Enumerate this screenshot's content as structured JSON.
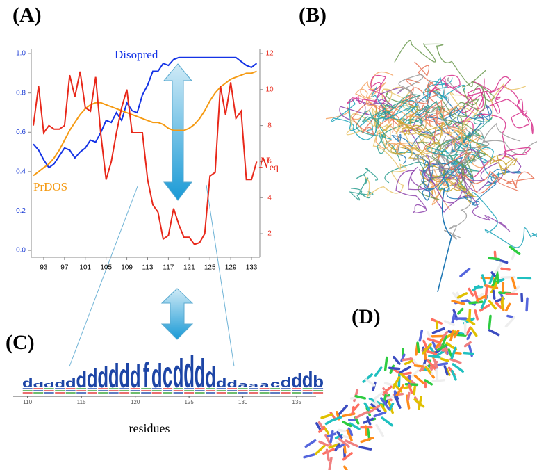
{
  "panels": {
    "a": "(A)",
    "b": "(B)",
    "c": "(C)",
    "d": "(D)"
  },
  "chart_data": [
    {
      "type": "line",
      "x": [
        91,
        92,
        93,
        94,
        95,
        96,
        97,
        98,
        99,
        100,
        101,
        102,
        103,
        104,
        105,
        106,
        107,
        108,
        109,
        110,
        111,
        112,
        113,
        114,
        115,
        116,
        117,
        118,
        119,
        120,
        121,
        122,
        123,
        124,
        125,
        126,
        127,
        128,
        129,
        130,
        131,
        132,
        133,
        134
      ],
      "xlim": [
        90.6,
        134.6
      ],
      "xticks": [
        93,
        97,
        101,
        105,
        109,
        113,
        117,
        121,
        125,
        129,
        133
      ],
      "ylim": [
        -0.035,
        1.025
      ],
      "yticks": [
        {
          "value": 0,
          "label": "0.0"
        },
        0.2,
        0.4,
        0.6,
        0.8,
        {
          "value": 1,
          "label": "1.0"
        }
      ],
      "y2lim": [
        0.69,
        12.27
      ],
      "y2ticks": [
        2,
        4,
        6,
        8,
        10,
        12
      ],
      "y2label": {
        "main": "N",
        "sub": "eq"
      },
      "y_color": "#1f3fd6",
      "y2_color": "#e8281a",
      "series": [
        {
          "name": "Disopred",
          "color": "#1433e6",
          "values": [
            0.54,
            0.51,
            0.46,
            0.42,
            0.44,
            0.48,
            0.52,
            0.51,
            0.47,
            0.5,
            0.52,
            0.56,
            0.55,
            0.6,
            0.66,
            0.65,
            0.7,
            0.66,
            0.75,
            0.71,
            0.7,
            0.79,
            0.84,
            0.91,
            0.91,
            0.95,
            0.94,
            0.97,
            0.98,
            0.98,
            0.98,
            0.98,
            0.98,
            0.98,
            0.98,
            0.98,
            0.98,
            0.98,
            0.98,
            0.98,
            0.96,
            0.94,
            0.93,
            0.95
          ]
        },
        {
          "name": "PrDOS",
          "color": "#f59a12",
          "values": [
            0.38,
            0.4,
            0.42,
            0.44,
            0.47,
            0.51,
            0.56,
            0.61,
            0.65,
            0.69,
            0.72,
            0.74,
            0.75,
            0.75,
            0.74,
            0.73,
            0.72,
            0.71,
            0.7,
            0.69,
            0.68,
            0.67,
            0.66,
            0.65,
            0.65,
            0.64,
            0.62,
            0.61,
            0.61,
            0.61,
            0.62,
            0.64,
            0.67,
            0.71,
            0.76,
            0.8,
            0.83,
            0.85,
            0.87,
            0.88,
            0.89,
            0.9,
            0.9,
            0.91
          ]
        },
        {
          "name": "Neq",
          "color": "#e8281a",
          "axis": "y2",
          "values": [
            8.0,
            10.2,
            7.6,
            8.0,
            7.8,
            7.8,
            8.0,
            10.8,
            9.6,
            11.0,
            9.0,
            8.8,
            10.7,
            7.5,
            5.0,
            6.0,
            7.6,
            9.0,
            10.0,
            7.6,
            7.6,
            7.6,
            5.0,
            3.6,
            3.2,
            1.7,
            1.9,
            3.4,
            2.5,
            1.8,
            1.8,
            1.4,
            1.5,
            2.0,
            5.2,
            5.4,
            10.2,
            8.6,
            10.4,
            8.4,
            8.8,
            5.0,
            5.0,
            6.0
          ]
        }
      ]
    },
    {
      "type": "logo",
      "x": [
        110,
        111,
        112,
        113,
        114,
        115,
        116,
        117,
        118,
        119,
        120,
        121,
        122,
        123,
        124,
        125,
        126,
        127,
        128,
        129,
        130,
        131,
        132,
        133,
        134,
        135,
        136,
        137
      ],
      "letters": [
        "d",
        "d",
        "d",
        "d",
        "d",
        "d",
        "d",
        "d",
        "d",
        "d",
        "d",
        "f",
        "d",
        "c",
        "d",
        "d",
        "d",
        "d",
        "d",
        "d",
        "a",
        "a",
        "a",
        "c",
        "d",
        "d",
        "d",
        "b"
      ],
      "values": [
        12,
        8,
        8,
        10,
        12,
        22,
        26,
        30,
        34,
        34,
        32,
        36,
        34,
        38,
        40,
        44,
        40,
        30,
        12,
        10,
        8,
        6,
        8,
        10,
        14,
        20,
        22,
        16
      ],
      "xlim": [
        108.6,
        136.8
      ],
      "xticks": [
        110,
        115,
        120,
        125,
        130,
        135
      ],
      "xlabel": "residues",
      "color": "#1d45a6"
    }
  ]
}
